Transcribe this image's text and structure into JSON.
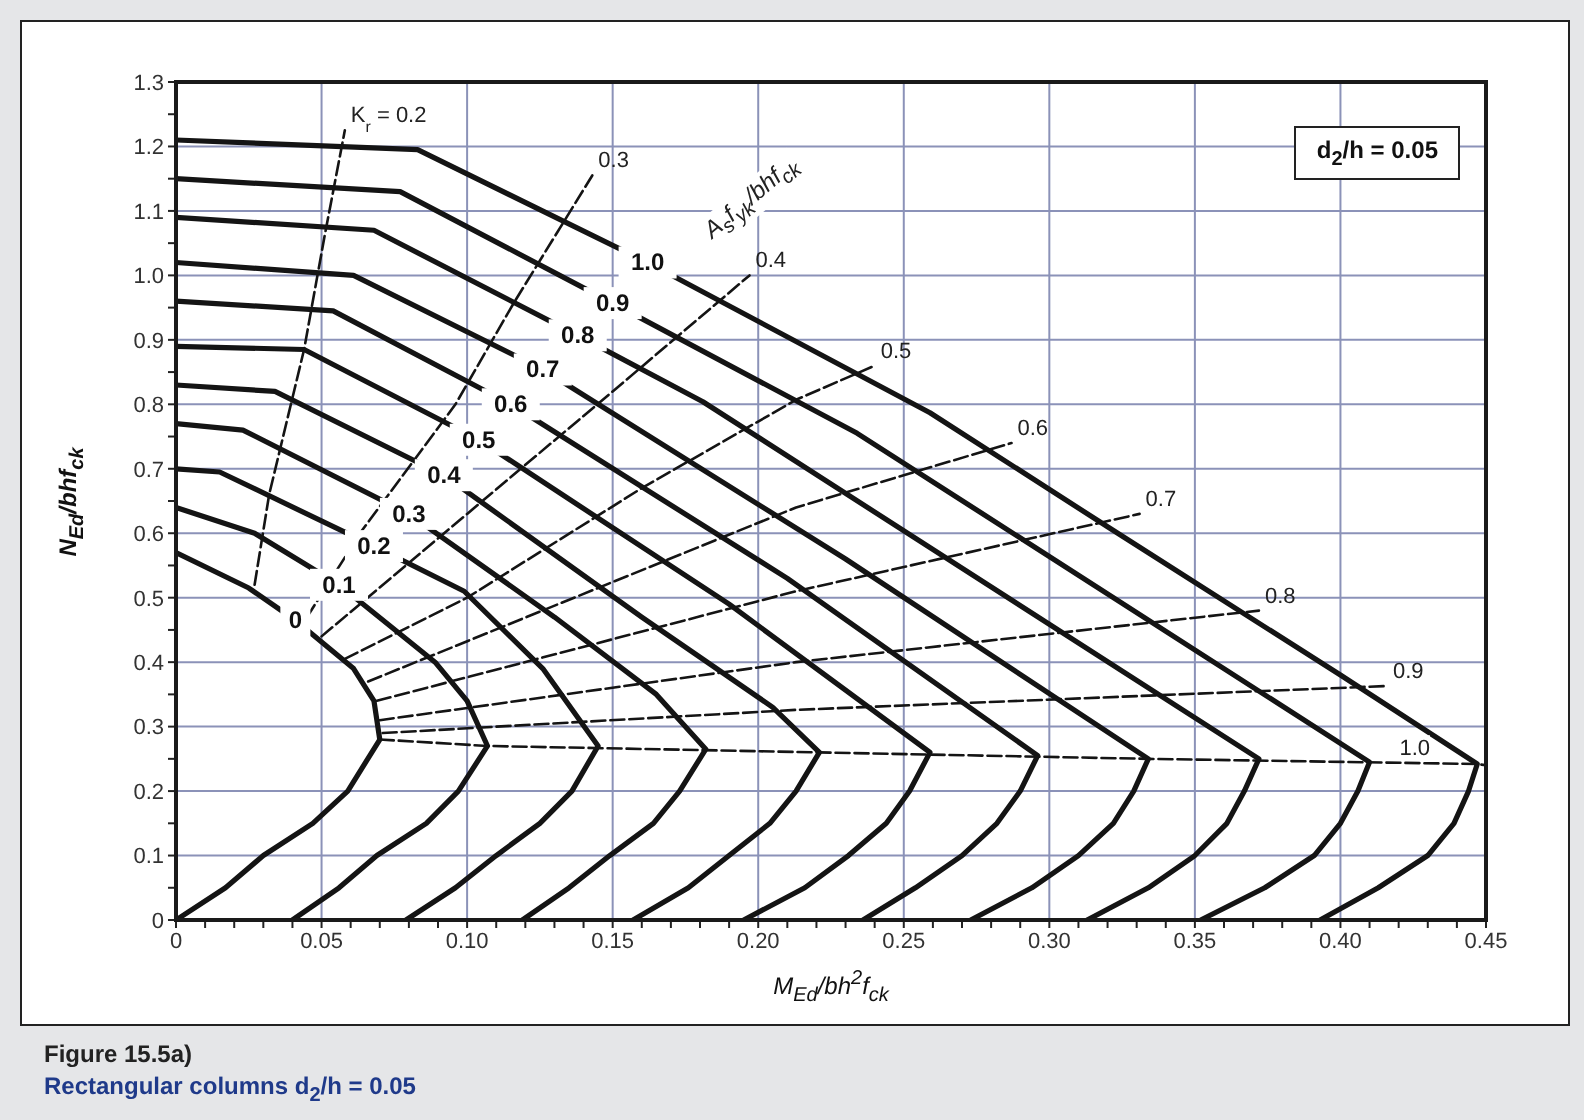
{
  "chart_data": {
    "type": "line",
    "title": "Figure 15.5a)",
    "subtitle": "Rectangular columns d$_{2}$/h = 0.05",
    "xlabel": "M$_{Ed}$/bh$^{2}$f$_{ck}$",
    "ylabel": "N$_{Ed}$/bhf$_{ck}$",
    "legend_title": "A$_{s}$f$_{yk}$/bhf$_{ck}$",
    "annotations": [
      "d$_{2}$/h = 0.05"
    ],
    "xlim": [
      0,
      0.45
    ],
    "ylim": [
      0,
      1.3
    ],
    "xticks": [
      0,
      {
        "value": 0.01,
        "label": null
      },
      {
        "value": 0.02,
        "label": null
      },
      {
        "value": 0.03,
        "label": null
      },
      {
        "value": 0.04,
        "label": null
      },
      0.05,
      {
        "value": 0.06,
        "label": null
      },
      {
        "value": 0.07,
        "label": null
      },
      {
        "value": 0.08,
        "label": null
      },
      {
        "value": 0.09,
        "label": null
      },
      {
        "value": 0.1,
        "label": "0.10"
      },
      {
        "value": 0.11,
        "label": null
      },
      {
        "value": 0.12,
        "label": null
      },
      {
        "value": 0.13,
        "label": null
      },
      {
        "value": 0.14,
        "label": null
      },
      0.15,
      {
        "value": 0.16,
        "label": null
      },
      {
        "value": 0.17,
        "label": null
      },
      {
        "value": 0.18,
        "label": null
      },
      {
        "value": 0.19,
        "label": null
      },
      {
        "value": 0.2,
        "label": "0.20"
      },
      {
        "value": 0.21,
        "label": null
      },
      {
        "value": 0.22,
        "label": null
      },
      {
        "value": 0.23,
        "label": null
      },
      {
        "value": 0.24,
        "label": null
      },
      0.25,
      {
        "value": 0.26,
        "label": null
      },
      {
        "value": 0.27,
        "label": null
      },
      {
        "value": 0.28,
        "label": null
      },
      {
        "value": 0.29,
        "label": null
      },
      {
        "value": 0.3,
        "label": "0.30"
      },
      {
        "value": 0.31,
        "label": null
      },
      {
        "value": 0.32,
        "label": null
      },
      {
        "value": 0.33,
        "label": null
      },
      {
        "value": 0.34,
        "label": null
      },
      0.35,
      {
        "value": 0.36,
        "label": null
      },
      {
        "value": 0.37,
        "label": null
      },
      {
        "value": 0.38,
        "label": null
      },
      {
        "value": 0.39,
        "label": null
      },
      {
        "value": 0.4,
        "label": "0.40"
      },
      {
        "value": 0.41,
        "label": null
      },
      {
        "value": 0.42,
        "label": null
      },
      {
        "value": 0.43,
        "label": null
      },
      {
        "value": 0.44,
        "label": null
      },
      0.45
    ],
    "yticks": [
      0,
      {
        "value": 0.05,
        "label": null
      },
      0.1,
      {
        "value": 0.15,
        "label": null
      },
      0.2,
      {
        "value": 0.25,
        "label": null
      },
      0.3,
      {
        "value": 0.35,
        "label": null
      },
      0.4,
      {
        "value": 0.45,
        "label": null
      },
      0.5,
      {
        "value": 0.55,
        "label": null
      },
      0.6,
      {
        "value": 0.65,
        "label": null
      },
      0.7,
      {
        "value": 0.75,
        "label": null
      },
      0.8,
      {
        "value": 0.85,
        "label": null
      },
      0.9,
      {
        "value": 0.95,
        "label": null
      },
      {
        "value": 1,
        "label": "1.0"
      },
      {
        "value": 1.05,
        "label": null
      },
      1.1,
      {
        "value": 1.15,
        "label": null
      },
      1.2,
      {
        "value": 1.25,
        "label": null
      },
      1.3
    ],
    "grid": true,
    "marker": "none",
    "line_style": "solid",
    "series": [
      {
        "name": "0",
        "color": "#141414",
        "x": [
          0,
          0.025,
          0.041,
          0.061,
          0.068,
          0.07,
          0.059,
          0.047,
          0.03,
          0.017,
          0
        ],
        "values": [
          0.57,
          0.515,
          0.465,
          0.39,
          0.34,
          0.28,
          0.2,
          0.15,
          0.1,
          0.05,
          0
        ]
      },
      {
        "name": "0.1",
        "color": "#141414",
        "x": [
          0,
          0.027,
          0.056,
          0.089,
          0.1,
          0.107,
          0.097,
          0.086,
          0.069,
          0.056,
          0.04
        ],
        "values": [
          0.64,
          0.6,
          0.52,
          0.4,
          0.34,
          0.27,
          0.2,
          0.15,
          0.1,
          0.05,
          0
        ]
      },
      {
        "name": "0.2",
        "color": "#141414",
        "x": [
          0,
          0.015,
          0.068,
          0.099,
          0.126,
          0.145,
          0.136,
          0.125,
          0.11,
          0.096,
          0.079
        ],
        "values": [
          0.7,
          0.695,
          0.58,
          0.51,
          0.39,
          0.27,
          0.2,
          0.15,
          0.1,
          0.05,
          0
        ]
      },
      {
        "name": "0.3",
        "color": "#141414",
        "x": [
          0,
          0.023,
          0.08,
          0.13,
          0.165,
          0.182,
          0.173,
          0.164,
          0.149,
          0.135,
          0.119
        ],
        "values": [
          0.77,
          0.76,
          0.63,
          0.47,
          0.35,
          0.265,
          0.2,
          0.15,
          0.1,
          0.05,
          0
        ]
      },
      {
        "name": "0.4",
        "color": "#141414",
        "x": [
          0,
          0.034,
          0.092,
          0.16,
          0.205,
          0.221,
          0.213,
          0.204,
          0.19,
          0.176,
          0.157
        ],
        "values": [
          0.83,
          0.82,
          0.69,
          0.47,
          0.33,
          0.26,
          0.2,
          0.15,
          0.1,
          0.05,
          0
        ]
      },
      {
        "name": "0.5",
        "color": "#141414",
        "x": [
          0,
          0.044,
          0.104,
          0.19,
          0.259,
          0.252,
          0.244,
          0.231,
          0.216,
          0.195
        ],
        "values": [
          0.89,
          0.885,
          0.745,
          0.49,
          0.26,
          0.2,
          0.15,
          0.1,
          0.05,
          0
        ]
      },
      {
        "name": "0.6",
        "color": "#141414",
        "x": [
          0,
          0.054,
          0.115,
          0.21,
          0.296,
          0.29,
          0.282,
          0.27,
          0.254,
          0.236
        ],
        "values": [
          0.96,
          0.945,
          0.8,
          0.53,
          0.255,
          0.2,
          0.15,
          0.1,
          0.05,
          0
        ]
      },
      {
        "name": "0.7",
        "color": "#141414",
        "x": [
          0,
          0.061,
          0.126,
          0.23,
          0.334,
          0.329,
          0.322,
          0.31,
          0.294,
          0.273
        ],
        "values": [
          1.02,
          1.0,
          0.854,
          0.56,
          0.25,
          0.2,
          0.15,
          0.1,
          0.05,
          0
        ]
      },
      {
        "name": "0.8",
        "color": "#141414",
        "x": [
          0,
          0.068,
          0.138,
          0.181,
          0.372,
          0.367,
          0.361,
          0.35,
          0.334,
          0.313
        ],
        "values": [
          1.09,
          1.07,
          0.907,
          0.804,
          0.25,
          0.2,
          0.15,
          0.1,
          0.05,
          0
        ]
      },
      {
        "name": "0.9",
        "color": "#141414",
        "x": [
          0,
          0.077,
          0.15,
          0.234,
          0.41,
          0.406,
          0.4,
          0.391,
          0.374,
          0.352
        ],
        "values": [
          1.15,
          1.13,
          0.957,
          0.755,
          0.245,
          0.2,
          0.15,
          0.1,
          0.05,
          0
        ]
      },
      {
        "name": "1.0",
        "color": "#141414",
        "x": [
          0,
          0.083,
          0.162,
          0.259,
          0.32,
          0.4,
          0.447,
          0.444,
          0.439,
          0.43,
          0.413,
          0.393
        ],
        "values": [
          1.21,
          1.195,
          1.02,
          0.787,
          0.61,
          0.38,
          0.242,
          0.2,
          0.15,
          0.1,
          0.05,
          0
        ]
      },
      {
        "name": "K$_{r}$ = 0.2",
        "color": "#141414",
        "line_style": "dashed",
        "x": [
          0.027,
          0.032,
          0.044,
          0.051,
          0.058
        ],
        "values": [
          0.52,
          0.66,
          0.885,
          1.06,
          1.225
        ]
      },
      {
        "name": "0.3",
        "color": "#141414",
        "line_style": "dashed",
        "x": [
          0.045,
          0.064,
          0.096,
          0.116,
          0.143
        ],
        "values": [
          0.47,
          0.605,
          0.8,
          0.957,
          1.155
        ]
      },
      {
        "name": "0.4",
        "color": "#141414",
        "line_style": "dashed",
        "x": [
          0.05,
          0.1,
          0.15,
          0.197
        ],
        "values": [
          0.44,
          0.63,
          0.82,
          1.0
        ]
      },
      {
        "name": "0.5",
        "color": "#141414",
        "line_style": "dashed",
        "x": [
          0.058,
          0.1,
          0.16,
          0.213,
          0.24
        ],
        "values": [
          0.405,
          0.5,
          0.67,
          0.807,
          0.86
        ]
      },
      {
        "name": "0.6",
        "color": "#141414",
        "line_style": "dashed",
        "x": [
          0.066,
          0.213,
          0.287
        ],
        "values": [
          0.37,
          0.64,
          0.74
        ]
      },
      {
        "name": "0.7",
        "color": "#141414",
        "line_style": "dashed",
        "x": [
          0.069,
          0.213,
          0.331
        ],
        "values": [
          0.34,
          0.51,
          0.63
        ]
      },
      {
        "name": "0.8",
        "color": "#141414",
        "line_style": "dashed",
        "x": [
          0.07,
          0.213,
          0.372
        ],
        "values": [
          0.31,
          0.4,
          0.48
        ]
      },
      {
        "name": "0.9",
        "color": "#141414",
        "line_style": "dashed",
        "x": [
          0.071,
          0.213,
          0.416
        ],
        "values": [
          0.29,
          0.326,
          0.363
        ]
      },
      {
        "name": "1.0",
        "color": "#141414",
        "line_style": "dashed",
        "x": [
          0.07,
          0.107,
          0.221,
          0.334,
          0.447,
          0.45
        ],
        "values": [
          0.28,
          0.27,
          0.26,
          0.25,
          0.242,
          0.24
        ]
      }
    ]
  }
}
